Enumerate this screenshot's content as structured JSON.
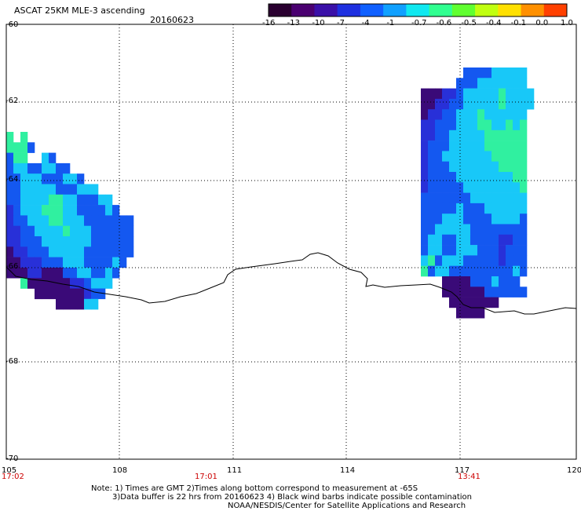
{
  "header": {
    "title": "ASCAT 25KM MLE-3 ascending",
    "date": "20160623"
  },
  "colorbar": {
    "colors": [
      "#2a0030",
      "#4a0070",
      "#3a10a8",
      "#1e30e0",
      "#1060ff",
      "#10a0ff",
      "#10e8f0",
      "#30ff90",
      "#60ff30",
      "#c0ff10",
      "#ffe000",
      "#ff9000",
      "#ff4000"
    ],
    "labels": [
      "-16",
      "-13",
      "-10",
      "-7",
      "-4",
      "-1",
      "-0.7",
      "-0.6",
      "-0.5",
      "-0.4",
      "-0.1",
      "0.0",
      "1.0"
    ]
  },
  "axes": {
    "lat_labels": [
      "-60",
      "-62",
      "-64",
      "-66",
      "-68",
      "-70"
    ],
    "lon_labels": [
      "105",
      "108",
      "111",
      "114",
      "117",
      "120"
    ],
    "time_labels": [
      "17:02",
      "17:01",
      "13:41"
    ]
  },
  "notes": {
    "line1": "Note: 1) Times are GMT 2)Times along bottom correspond to measurement at -65S",
    "line2": "3)Data buffer is 22 hrs from 20160623 4) Black wind barbs indicate possible contamination",
    "line3": "NOAA/NESDIS/Center for Satellite Applications and Research"
  },
  "swaths": [
    {
      "rows": [
        "G G",
        "GGGB",
        "BGG  CB",
        "BCCBBCCBB",
        "BBCCCBBBCCB",
        "BBCCCCCBBBCCC",
        "BBCCCCGGCCBBBCC",
        "DBCCCGGGCCBBBBCB",
        "DBBCCCGGCCCBBBBBBB",
        "DDBBCCCCGCCCBBBBBB",
        "DDBBBCCCCCCCBBBBBB",
        "PDDBBBCCCCCBBBBBBB",
        "PPDDDBBBCCCBBBBCB",
        "PPPDDPPPBBCCBBCB",
        "  GPPPPPPDDBCCC",
        "    PPPPPPPDBB",
        "       PPPPCC"
      ]
    },
    {
      "rows": [
        "      BBBBCCCCC",
        "     BBBCCCCCCC",
        "PPPDDBCCCCCGCCCC",
        "PPDDBBCCCCCGCCCC",
        "PDDBBCCCGCCCCCC",
        "DDBBBCCCGGCCGCG",
        "DDBBCCCCCGGGGGG",
        "DBBBCCCCCGGGGGG",
        "DBBCCCCCCCGGGGG",
        "DBBBCCCCCCCGGGG",
        "DBBBBCCCCCCCCGG",
        "DBBBBBCCCCCCCCG",
        "BBBBBBBCCCCCCCC",
        "BBBBBCBBBCCCCCC",
        "BBBCCCBBBBCCCCB",
        "BBCCCCCBBBBBBBB",
        "BCCBBCCBBBBDDBB",
        "BCCBBCCCBBBDBBB",
        "CGBCCCBBBBBDBBB",
        "GBCCBBBBBBBBBCB",
        "   PPPPBBBCBBB",
        "   PPPPPPBBBBBB",
        "    PPPPPPP",
        "     PPPP"
      ]
    }
  ],
  "palette": {
    "P": "#3a0a78",
    "D": "#2830d8",
    "B": "#1458f0",
    "C": "#18c8f8",
    "G": "#30f0a0"
  }
}
